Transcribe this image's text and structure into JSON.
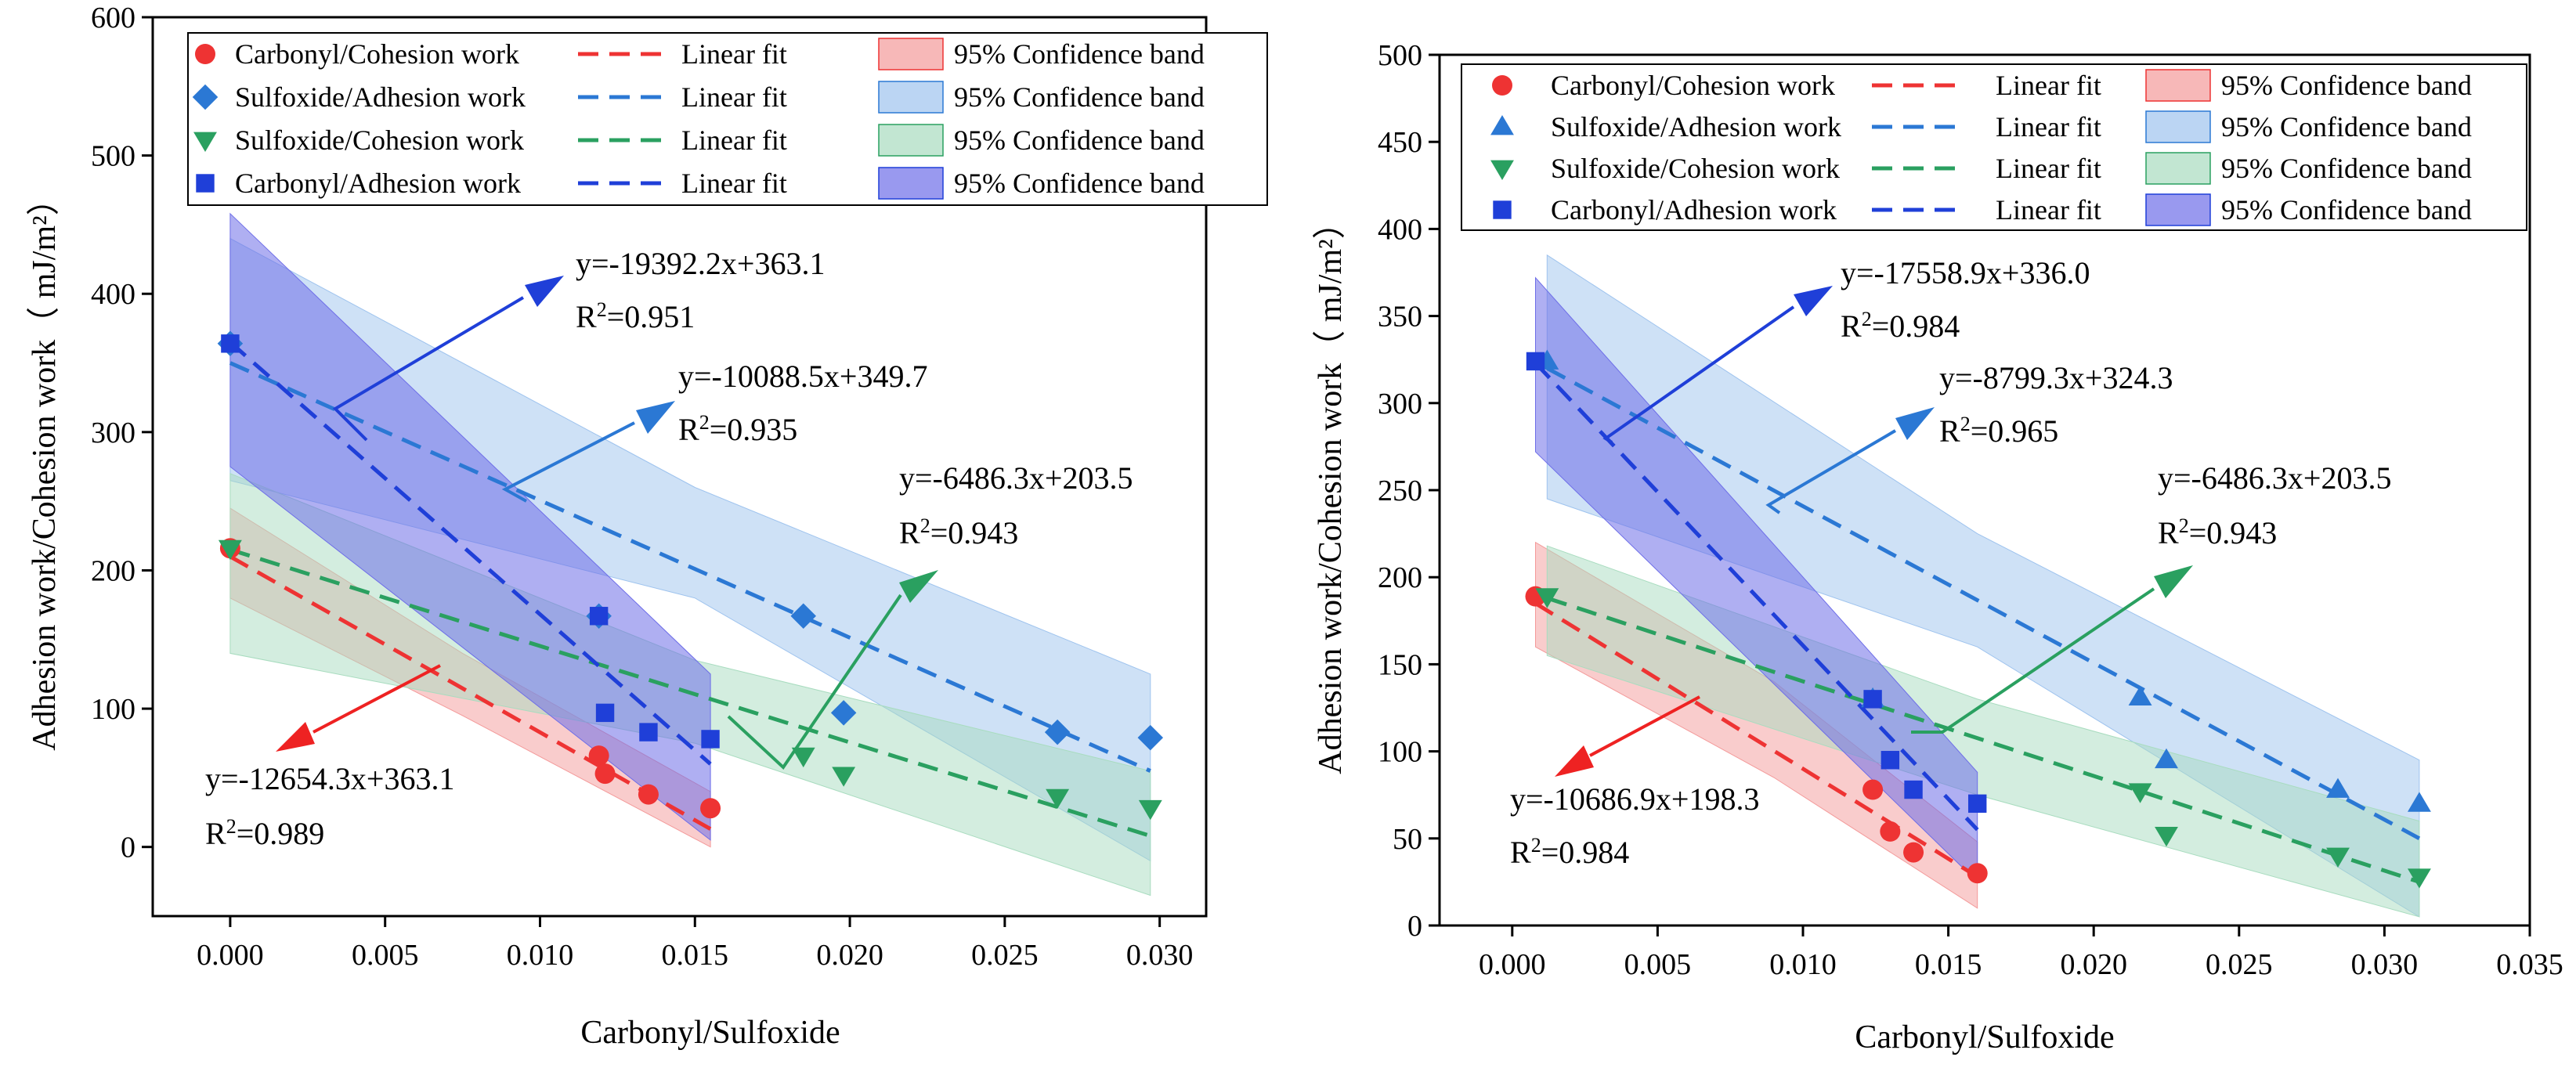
{
  "chart_data": [
    {
      "type": "scatter",
      "name": "left-chart",
      "xlabel": "Carbonyl/Sulfoxide",
      "ylabel": "Adhesion work/Cohesion work（ mJ/m²）",
      "xlim": [
        -0.0025,
        0.0315
      ],
      "ylim": [
        -50,
        600
      ],
      "xticks": [
        "0.000",
        "0.005",
        "0.010",
        "0.015",
        "0.020",
        "0.025",
        "0.030"
      ],
      "xtick_values": [
        0,
        0.005,
        0.01,
        0.015,
        0.02,
        0.025,
        0.03
      ],
      "yticks": [
        "0",
        "100",
        "200",
        "300",
        "400",
        "500",
        "600"
      ],
      "ytick_values": [
        0,
        100,
        200,
        300,
        400,
        500,
        600
      ],
      "series": [
        {
          "name": "Carbonyl/Cohesion work",
          "marker": "circle",
          "color": "#ee3333",
          "fit_label": "Linear fit",
          "band_label": "95% Confidence band",
          "band_fill": "#f49a9a",
          "x": [
            0,
            0.0119,
            0.0121,
            0.0135,
            0.0155
          ],
          "y": [
            216,
            66,
            53,
            38,
            28
          ],
          "fit": [
            [
              0,
              210
            ],
            [
              0.0155,
              13
            ]
          ],
          "band": [
            [
              0,
              245
            ],
            [
              0.0075,
              140
            ],
            [
              0.0155,
              40
            ],
            [
              0.0155,
              0
            ],
            [
              0.0075,
              95
            ],
            [
              0,
              180
            ]
          ]
        },
        {
          "name": "Sulfoxide/Adhesion work",
          "marker": "diamond",
          "color": "#2b78d4",
          "fit_label": "Linear fit",
          "band_label": "95% Confidence band",
          "band_fill": "#9ec3ee",
          "x": [
            0,
            0.0119,
            0.0185,
            0.0198,
            0.0267,
            0.0297
          ],
          "y": [
            364,
            167,
            167,
            97,
            83,
            79
          ],
          "fit": [
            [
              0,
              350
            ],
            [
              0.0297,
              55
            ]
          ],
          "band": [
            [
              0,
              440
            ],
            [
              0.015,
              260
            ],
            [
              0.0297,
              125
            ],
            [
              0.0297,
              -10
            ],
            [
              0.015,
              180
            ],
            [
              0,
              265
            ]
          ]
        },
        {
          "name": "Sulfoxide/Cohesion work",
          "marker": "triangle-down",
          "color": "#2aa060",
          "fit_label": "Linear fit",
          "band_label": "95% Confidence band",
          "band_fill": "#a8dcbf",
          "x": [
            0,
            0.0185,
            0.0198,
            0.0267,
            0.0297
          ],
          "y": [
            216,
            66,
            52,
            36,
            28
          ],
          "fit": [
            [
              0,
              215
            ],
            [
              0.0297,
              8
            ]
          ],
          "band": [
            [
              0,
              270
            ],
            [
              0.015,
              135
            ],
            [
              0.0297,
              55
            ],
            [
              0.0297,
              -35
            ],
            [
              0.015,
              75
            ],
            [
              0,
              140
            ]
          ]
        },
        {
          "name": "Carbonyl/Adhesion work",
          "marker": "square",
          "color": "#1f3fd8",
          "fit_label": "Linear fit",
          "band_label": "95% Confidence band",
          "band_fill": "#6e6ee8",
          "x": [
            0,
            0.0119,
            0.0121,
            0.0135,
            0.0155
          ],
          "y": [
            364,
            167,
            97,
            83,
            78
          ],
          "fit": [
            [
              0,
              365
            ],
            [
              0.0155,
              60
            ]
          ],
          "band": [
            [
              0,
              458
            ],
            [
              0.0155,
              125
            ],
            [
              0.0155,
              5
            ],
            [
              0,
              275
            ]
          ]
        }
      ],
      "annotations": [
        {
          "equation": "y=-19392.2x+363.1",
          "r2_label": "R",
          "r2_value": "=0.951",
          "color": "#1f3fd8"
        },
        {
          "equation": "y=-10088.5x+349.7",
          "r2_label": "R",
          "r2_value": "=0.935",
          "color": "#2b78d4"
        },
        {
          "equation": "y=-6486.3x+203.5",
          "r2_label": "R",
          "r2_value": "=0.943",
          "color": "#2aa060"
        },
        {
          "equation": "y=-12654.3x+363.1",
          "r2_label": "R",
          "r2_value": "=0.989",
          "color": "#ee2222"
        }
      ]
    },
    {
      "type": "scatter",
      "name": "right-chart",
      "xlabel": "Carbonyl/Sulfoxide",
      "ylabel": "Adhesion work/Cohesion work（ mJ/m²）",
      "xlim": [
        -0.0025,
        0.035
      ],
      "ylim": [
        0,
        500
      ],
      "xticks": [
        "0.000",
        "0.005",
        "0.010",
        "0.015",
        "0.020",
        "0.025",
        "0.030",
        "0.035"
      ],
      "xtick_values": [
        0,
        0.005,
        0.01,
        0.015,
        0.02,
        0.025,
        0.03,
        0.035
      ],
      "yticks": [
        "0",
        "50",
        "100",
        "150",
        "200",
        "250",
        "300",
        "350",
        "400",
        "450",
        "500"
      ],
      "ytick_values": [
        0,
        50,
        100,
        150,
        200,
        250,
        300,
        350,
        400,
        450,
        500
      ],
      "series": [
        {
          "name": "Carbonyl/Cohesion work",
          "marker": "circle",
          "color": "#ee3333",
          "fit_label": "Linear fit",
          "band_label": "95% Confidence band",
          "band_fill": "#f49a9a",
          "x": [
            0.0008,
            0.0124,
            0.013,
            0.0138,
            0.016
          ],
          "y": [
            189,
            78,
            54,
            42,
            30
          ],
          "fit": [
            [
              0.0008,
              185
            ],
            [
              0.016,
              28
            ]
          ],
          "band": [
            [
              0.0008,
              220
            ],
            [
              0.009,
              140
            ],
            [
              0.016,
              48
            ],
            [
              0.016,
              10
            ],
            [
              0.009,
              85
            ],
            [
              0.0008,
              160
            ]
          ]
        },
        {
          "name": "Sulfoxide/Adhesion work",
          "marker": "triangle-up",
          "color": "#2b78d4",
          "fit_label": "Linear fit",
          "band_label": "95% Confidence band",
          "band_fill": "#9ec3ee",
          "x": [
            0.0012,
            0.0124,
            0.0216,
            0.0225,
            0.0284,
            0.0312
          ],
          "y": [
            324,
            130,
            131,
            95,
            78,
            70
          ],
          "fit": [
            [
              0.0012,
              320
            ],
            [
              0.0312,
              50
            ]
          ],
          "band": [
            [
              0.0012,
              385
            ],
            [
              0.016,
              225
            ],
            [
              0.0312,
              95
            ],
            [
              0.0312,
              5
            ],
            [
              0.016,
              160
            ],
            [
              0.0012,
              245
            ]
          ]
        },
        {
          "name": "Sulfoxide/Cohesion work",
          "marker": "triangle-down",
          "color": "#2aa060",
          "fit_label": "Linear fit",
          "band_label": "95% Confidence band",
          "band_fill": "#a8dcbf",
          "x": [
            0.0012,
            0.0216,
            0.0225,
            0.0284,
            0.0312
          ],
          "y": [
            189,
            77,
            52,
            40,
            28
          ],
          "fit": [
            [
              0.0012,
              188
            ],
            [
              0.0312,
              25
            ]
          ],
          "band": [
            [
              0.0012,
              218
            ],
            [
              0.016,
              130
            ],
            [
              0.0312,
              60
            ],
            [
              0.0312,
              5
            ],
            [
              0.016,
              75
            ],
            [
              0.0012,
              155
            ]
          ]
        },
        {
          "name": "Carbonyl/Adhesion work",
          "marker": "square",
          "color": "#1f3fd8",
          "fit_label": "Linear fit",
          "band_label": "95% Confidence band",
          "band_fill": "#6e6ee8",
          "x": [
            0.0008,
            0.0124,
            0.013,
            0.0138,
            0.016
          ],
          "y": [
            324,
            130,
            95,
            78,
            70
          ],
          "fit": [
            [
              0.0008,
              323
            ],
            [
              0.016,
              55
            ]
          ],
          "band": [
            [
              0.0008,
              372
            ],
            [
              0.016,
              88
            ],
            [
              0.016,
              25
            ],
            [
              0.0008,
              272
            ]
          ]
        }
      ],
      "annotations": [
        {
          "equation": "y=-17558.9x+336.0",
          "r2_label": "R",
          "r2_value": "=0.984",
          "color": "#1f3fd8"
        },
        {
          "equation": "y=-8799.3x+324.3",
          "r2_label": "R",
          "r2_value": "=0.965",
          "color": "#2b78d4"
        },
        {
          "equation": "y=-6486.3x+203.5",
          "r2_label": "R",
          "r2_value": "=0.943",
          "color": "#2aa060"
        },
        {
          "equation": "y=-10686.9x+198.3",
          "r2_label": "R",
          "r2_value": "=0.984",
          "color": "#ee2222"
        }
      ]
    }
  ]
}
